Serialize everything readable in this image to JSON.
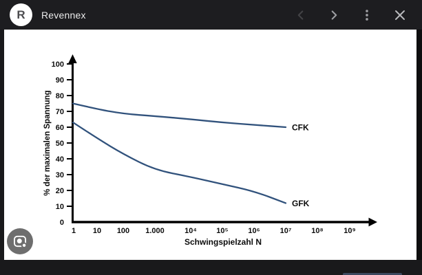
{
  "header": {
    "site_name": "Revennex",
    "logo_letter": "R",
    "icons": {
      "back": "chevron-left-icon",
      "forward": "chevron-right-icon",
      "menu": "more-vert-icon",
      "close": "close-icon"
    }
  },
  "viewer": {
    "lens_icon": "lens-search-icon"
  },
  "chart_data": {
    "type": "line",
    "title": "",
    "xlabel": "Schwingspielzahl N",
    "ylabel": "% der maximalen Spannung",
    "x_scale": "log-decades",
    "x_tick_labels": [
      "1",
      "10",
      "100",
      "1.000",
      "10⁴",
      "10⁵",
      "10⁶",
      "10⁷",
      "10⁸",
      "10⁹"
    ],
    "y_ticks": [
      0,
      10,
      20,
      30,
      40,
      50,
      60,
      70,
      80,
      90,
      100
    ],
    "ylim": [
      0,
      100
    ],
    "grid": false,
    "legend_position": "line-end-labels",
    "line_color": "#31527c",
    "axis_color": "#000000",
    "series": [
      {
        "name": "CFK",
        "x_decades": [
          0,
          1,
          2,
          3,
          4,
          5,
          6,
          7
        ],
        "values": [
          75,
          71.5,
          68.5,
          67,
          65,
          63,
          61.5,
          60
        ]
      },
      {
        "name": "GFK",
        "x_decades": [
          0,
          1,
          2,
          3,
          4,
          5,
          6,
          7
        ],
        "values": [
          63,
          53,
          43,
          33,
          28.5,
          24,
          19.5,
          12
        ]
      }
    ]
  }
}
